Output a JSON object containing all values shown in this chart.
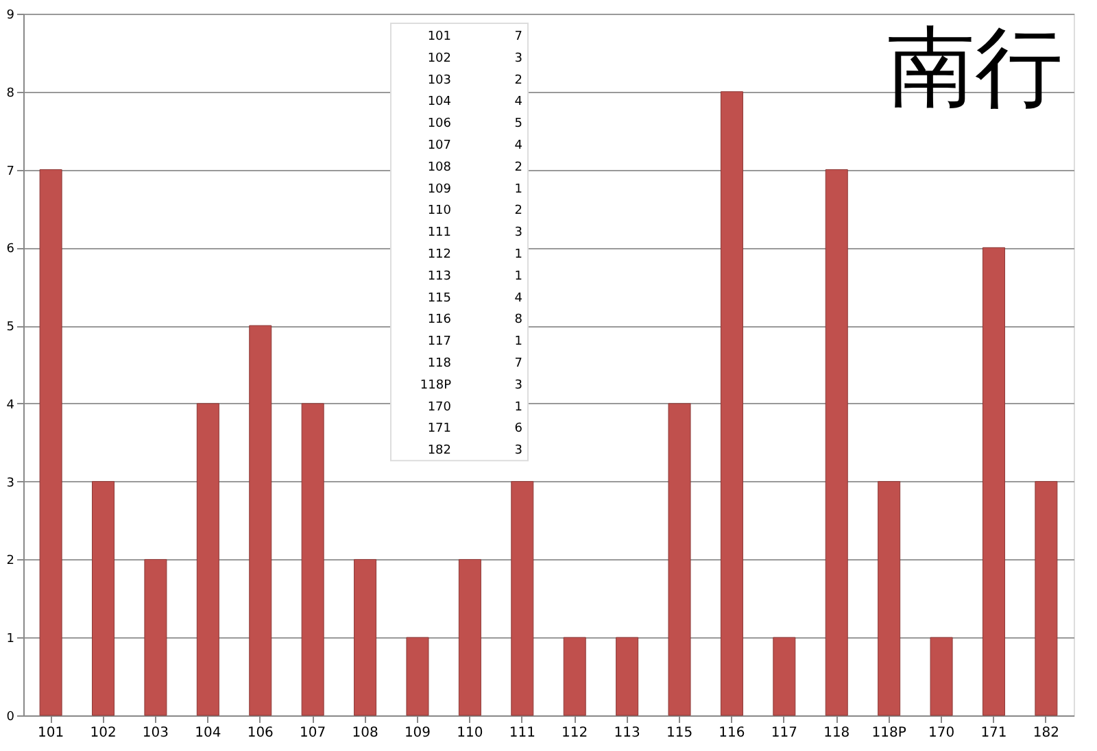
{
  "chart_data": {
    "type": "bar",
    "title": "南行",
    "categories": [
      "101",
      "102",
      "103",
      "104",
      "106",
      "107",
      "108",
      "109",
      "110",
      "111",
      "112",
      "113",
      "115",
      "116",
      "117",
      "118",
      "118P",
      "170",
      "171",
      "182"
    ],
    "values": [
      7,
      3,
      2,
      4,
      5,
      4,
      2,
      1,
      2,
      3,
      1,
      1,
      4,
      8,
      1,
      7,
      3,
      1,
      6,
      3
    ],
    "color": "#c0504d",
    "ylim": [
      0,
      9
    ],
    "yticks": [
      0,
      1,
      2,
      3,
      4,
      5,
      6,
      7,
      8,
      9
    ],
    "grid": "y",
    "annotations": [
      "101",
      "7",
      "102",
      "3",
      "103",
      "2",
      "104",
      "4",
      "106",
      "5",
      "107",
      "4",
      "108",
      "2",
      "109",
      "1",
      "110",
      "2",
      "111",
      "3",
      "112",
      "1",
      "113",
      "1",
      "115",
      "4",
      "116",
      "8",
      "117",
      "1",
      "118",
      "7",
      "118P",
      "3",
      "170",
      "1",
      "171",
      "6",
      "182",
      "3"
    ]
  }
}
